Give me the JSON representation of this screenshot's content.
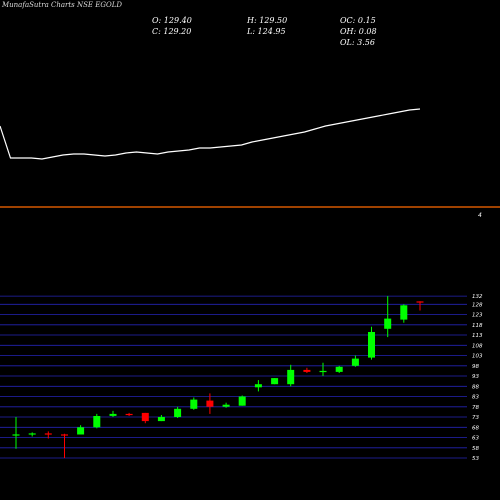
{
  "header": {
    "title": "MunafaSutra Charts NSE EGOLD",
    "o": "O: 129.40",
    "h": "H: 129.50",
    "oc": "OC: 0.15",
    "c": "C: 129.20",
    "l": "L: 124.95",
    "oh": "OH: 0.08",
    "ol": "OL: 3.56"
  },
  "colors": {
    "up": "#00ff00",
    "down": "#ff0000",
    "grid": "#2424b4",
    "line": "#ffffff",
    "divider": "#ff6a00"
  },
  "chart_data": [
    {
      "type": "line",
      "title": "",
      "x": [
        0,
        1,
        2,
        3,
        4,
        5,
        6,
        7,
        8,
        9,
        10,
        11,
        12,
        13,
        14,
        15,
        16,
        17,
        18,
        19,
        20,
        21,
        22,
        23,
        24,
        25,
        26,
        27,
        28,
        29,
        30,
        31,
        32,
        33,
        34,
        35,
        36,
        37,
        38,
        39,
        40
      ],
      "values": [
        74,
        42,
        42,
        42,
        41,
        43,
        45,
        46,
        46,
        45,
        44,
        45,
        47,
        48,
        47,
        46,
        48,
        49,
        50,
        52,
        52,
        53,
        54,
        55,
        58,
        60,
        62,
        64,
        66,
        68,
        71,
        74,
        76,
        78,
        80,
        82,
        84,
        86,
        88,
        90,
        91
      ],
      "ylim": [
        0,
        160
      ]
    },
    {
      "type": "candlestick",
      "title": "",
      "ylim": [
        53,
        134
      ],
      "y_ticks": [
        53,
        58,
        63,
        68,
        73,
        78,
        83,
        88,
        93,
        98,
        103,
        108,
        113,
        118,
        123,
        128,
        132
      ],
      "rsi_label": "4",
      "candles": [
        {
          "o": 64.5,
          "h": 73,
          "l": 57.5,
          "c": 64.5
        },
        {
          "o": 64.5,
          "h": 65.5,
          "l": 63.5,
          "c": 65
        },
        {
          "o": 65,
          "h": 66,
          "l": 62.5,
          "c": 64.5
        },
        {
          "o": 64.5,
          "h": 64.8,
          "l": 53,
          "c": 64
        },
        {
          "o": 64.5,
          "h": 69,
          "l": 64.5,
          "c": 68
        },
        {
          "o": 68,
          "h": 74.5,
          "l": 67.5,
          "c": 73.5
        },
        {
          "o": 73.5,
          "h": 76,
          "l": 73,
          "c": 74.5
        },
        {
          "o": 74.5,
          "h": 75,
          "l": 73.5,
          "c": 74
        },
        {
          "o": 75,
          "h": 75,
          "l": 70,
          "c": 71
        },
        {
          "o": 71,
          "h": 74,
          "l": 71,
          "c": 73
        },
        {
          "o": 73,
          "h": 78,
          "l": 72.5,
          "c": 77
        },
        {
          "o": 77,
          "h": 82.5,
          "l": 76.5,
          "c": 81.5
        },
        {
          "o": 81,
          "h": 84.5,
          "l": 74.5,
          "c": 78
        },
        {
          "o": 78,
          "h": 80,
          "l": 77.5,
          "c": 79
        },
        {
          "o": 78.5,
          "h": 83.5,
          "l": 78.5,
          "c": 83
        },
        {
          "o": 87.5,
          "h": 91,
          "l": 85.5,
          "c": 89
        },
        {
          "o": 89,
          "h": 92,
          "l": 89,
          "c": 92
        },
        {
          "o": 89,
          "h": 98.5,
          "l": 88,
          "c": 96
        },
        {
          "o": 96,
          "h": 97,
          "l": 94.5,
          "c": 95
        },
        {
          "o": 95,
          "h": 99.5,
          "l": 93,
          "c": 95.5
        },
        {
          "o": 95,
          "h": 98,
          "l": 94.5,
          "c": 97.5
        },
        {
          "o": 98,
          "h": 103,
          "l": 97.5,
          "c": 101.5
        },
        {
          "o": 102,
          "h": 117,
          "l": 101,
          "c": 114.5
        },
        {
          "o": 116,
          "h": 132,
          "l": 112,
          "c": 121
        },
        {
          "o": 120.5,
          "h": 128,
          "l": 119,
          "c": 127.5
        },
        {
          "o": 129.4,
          "h": 129.5,
          "l": 124.95,
          "c": 129.2
        }
      ]
    }
  ]
}
